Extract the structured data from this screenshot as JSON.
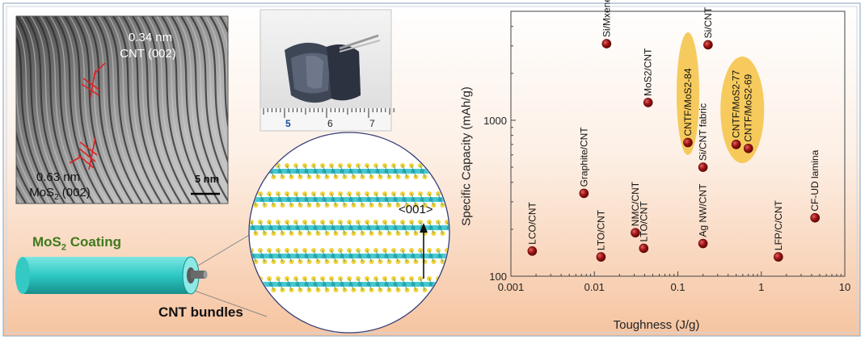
{
  "tem": {
    "label_cnt_spacing": "0.34 nm",
    "label_cnt_plane": "CNT (002)",
    "label_mos2_spacing": "0.63 nm",
    "label_mos2_plane_main": "MoS",
    "label_mos2_plane_sub": "2",
    "label_mos2_plane_rest": " (002)",
    "scale_bar": "5 nm"
  },
  "photo": {
    "ruler_numbers": [
      "5",
      "6",
      "7"
    ]
  },
  "schematic": {
    "coating_main": "MoS",
    "coating_sub": "2",
    "coating_rest": " Coating",
    "bundles_label": "CNT bundles",
    "direction_label": "<001>"
  },
  "colors": {
    "marker": "#9e1010",
    "highlight": "#f5c242",
    "fiber": "#2ec9c4",
    "coating_text": "#3f7a1c",
    "panel_bg_top": "#ffffff",
    "panel_bg_bottom": "#f7c7a4"
  },
  "chart_data": {
    "type": "scatter",
    "xlabel": "Toughness (J/g)",
    "ylabel": "Specific Capacity (mAh/g)",
    "xscale": "log",
    "yscale": "log",
    "xlim": [
      0.001,
      10
    ],
    "ylim": [
      100,
      5000
    ],
    "xticks": [
      "0.001",
      "0.01",
      "0.1",
      "1",
      "10"
    ],
    "yticks": [
      "100",
      "1000"
    ],
    "points": [
      {
        "label": "LCO/CNT",
        "x": 0.0018,
        "y": 145
      },
      {
        "label": "Graphite/CNT",
        "x": 0.0075,
        "y": 340
      },
      {
        "label": "LTO/CNT",
        "x": 0.012,
        "y": 133
      },
      {
        "label": "Si/Mxenes",
        "x": 0.014,
        "y": 3100
      },
      {
        "label": "NMC/CNT",
        "x": 0.031,
        "y": 190
      },
      {
        "label": "LTO/CNT",
        "x": 0.039,
        "y": 151
      },
      {
        "label": "MoS2/CNT",
        "x": 0.044,
        "y": 1300
      },
      {
        "label": "CNTF/MoS2-84",
        "x": 0.132,
        "y": 720
      },
      {
        "label": "Ag NW/CNT",
        "x": 0.2,
        "y": 162
      },
      {
        "label": "Si/CNT fabric",
        "x": 0.2,
        "y": 500
      },
      {
        "label": "Si/CNT",
        "x": 0.23,
        "y": 3050
      },
      {
        "label": "CNTF/MoS2-77",
        "x": 0.5,
        "y": 700
      },
      {
        "label": "CNTF/MoS2-69",
        "x": 0.7,
        "y": 660
      },
      {
        "label": "LFP/C/CNT",
        "x": 1.6,
        "y": 133
      },
      {
        "label": "CF-UD lamina",
        "x": 4.4,
        "y": 237
      }
    ]
  }
}
